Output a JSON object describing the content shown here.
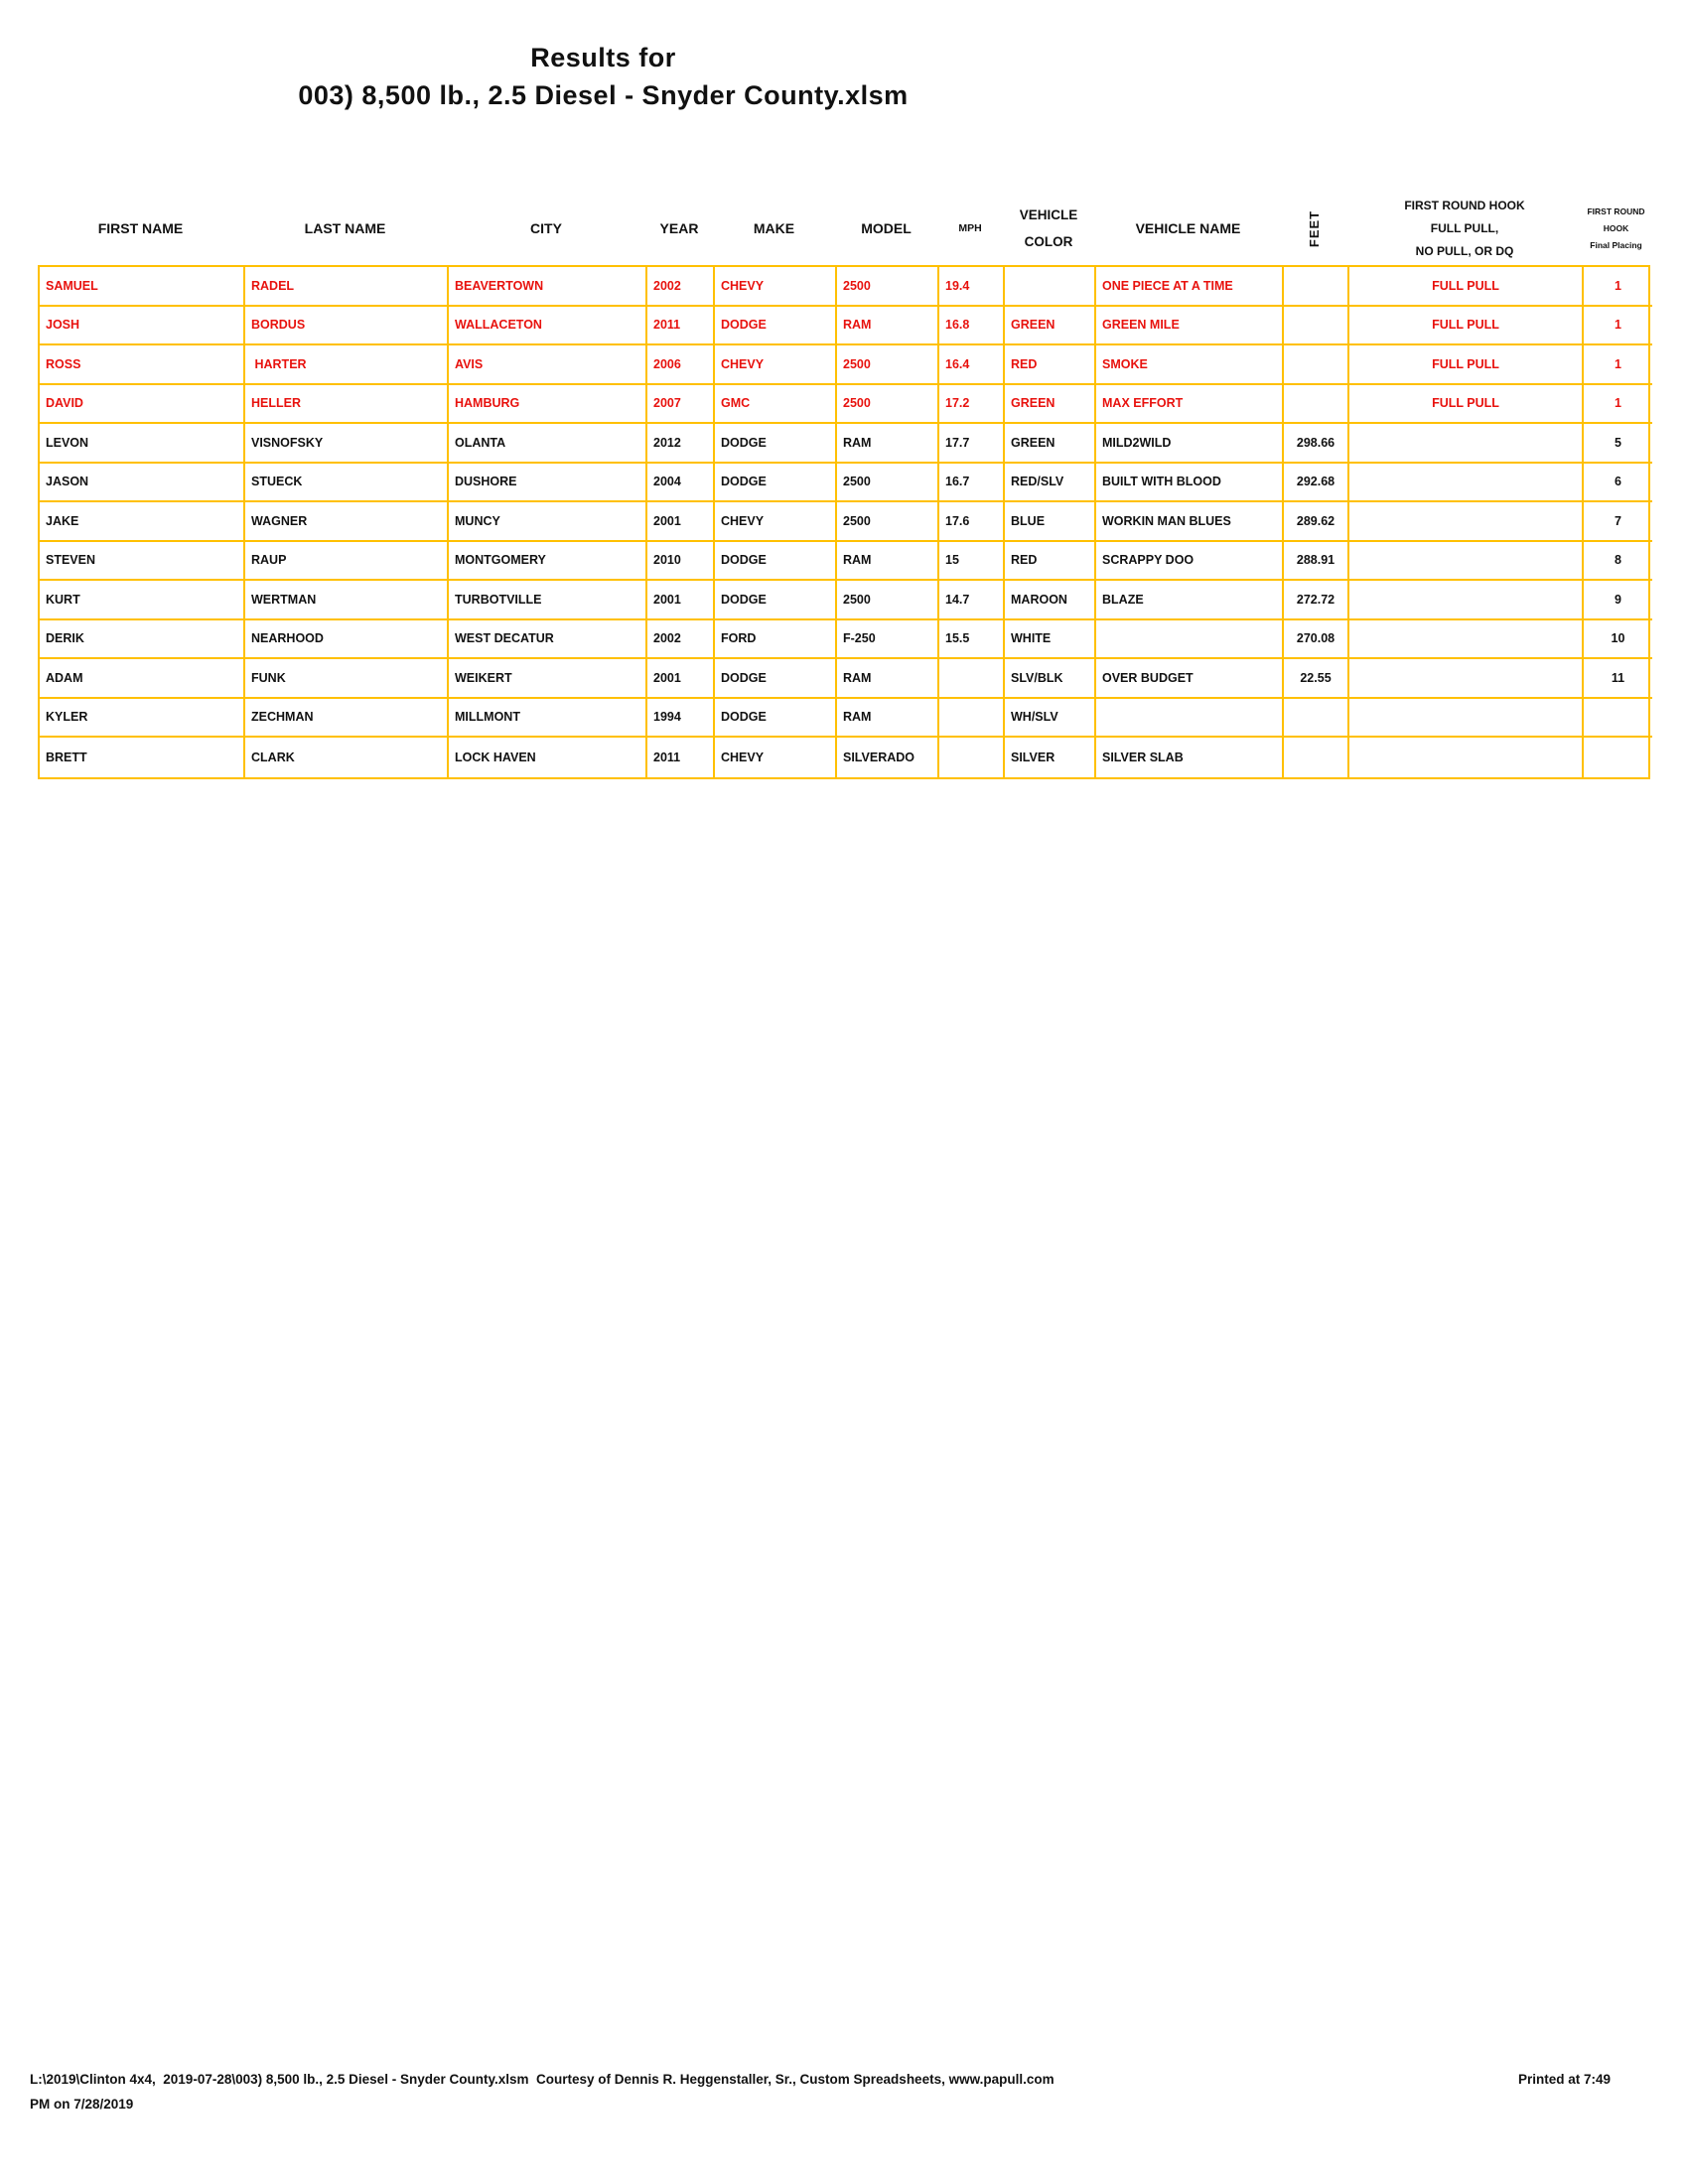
{
  "title": {
    "line1": "Results for",
    "line2": "003) 8,500 lb., 2.5 Diesel - Snyder County.xlsm"
  },
  "colors": {
    "border": "#FFC000",
    "red_text": "#E8120E",
    "black_text": "#111111"
  },
  "table": {
    "columns": [
      "first_name",
      "last_name",
      "city",
      "year",
      "make",
      "model",
      "mph",
      "vehicle_color",
      "vehicle_name",
      "feet",
      "first_round_hook",
      "final_placing"
    ],
    "header": {
      "first_name": "FIRST NAME",
      "last_name": "LAST NAME",
      "city": "CITY",
      "year": "YEAR",
      "make": "MAKE",
      "model": "MODEL",
      "mph": "MPH",
      "vehicle_color_line1": "VEHICLE",
      "vehicle_color_line2": "COLOR",
      "vehicle_name": "VEHICLE NAME",
      "feet": "FEET",
      "hook_line1": "FIRST ROUND HOOK",
      "hook_line2": "FULL PULL,",
      "hook_line3": "NO PULL, OR DQ",
      "placing_line1": "FIRST ROUND",
      "placing_line2": "HOOK",
      "placing_line3": "Final Placing"
    },
    "rows": [
      {
        "red": true,
        "cells": [
          "SAMUEL",
          "RADEL",
          "BEAVERTOWN",
          "2002",
          "CHEVY",
          "2500",
          "19.4",
          "",
          "ONE PIECE AT A TIME",
          "",
          "FULL PULL",
          "1"
        ]
      },
      {
        "red": true,
        "cells": [
          "JOSH",
          "BORDUS",
          "WALLACETON",
          "2011",
          "DODGE",
          "RAM",
          "16.8",
          "GREEN",
          "GREEN MILE",
          "",
          "FULL PULL",
          "1"
        ]
      },
      {
        "red": true,
        "cells": [
          "ROSS",
          " HARTER",
          "AVIS",
          "2006",
          "CHEVY",
          "2500",
          "16.4",
          "RED",
          "SMOKE",
          "",
          "FULL PULL",
          "1"
        ]
      },
      {
        "red": true,
        "cells": [
          "DAVID",
          "HELLER",
          "HAMBURG",
          "2007",
          "GMC",
          "2500",
          "17.2",
          "GREEN",
          "MAX EFFORT",
          "",
          "FULL PULL",
          "1"
        ]
      },
      {
        "red": false,
        "cells": [
          "LEVON",
          "VISNOFSKY",
          "OLANTA",
          "2012",
          "DODGE",
          "RAM",
          "17.7",
          "GREEN",
          "MILD2WILD",
          "298.66",
          "",
          "5"
        ]
      },
      {
        "red": false,
        "cells": [
          "JASON",
          "STUECK",
          "DUSHORE",
          "2004",
          "DODGE",
          "2500",
          "16.7",
          "RED/SLV",
          "BUILT WITH BLOOD",
          "292.68",
          "",
          "6"
        ]
      },
      {
        "red": false,
        "cells": [
          "JAKE",
          "WAGNER",
          "MUNCY",
          "2001",
          "CHEVY",
          "2500",
          "17.6",
          "BLUE",
          "WORKIN MAN BLUES",
          "289.62",
          "",
          "7"
        ]
      },
      {
        "red": false,
        "cells": [
          "STEVEN",
          "RAUP",
          "MONTGOMERY",
          "2010",
          "DODGE",
          "RAM",
          "15",
          "RED",
          "SCRAPPY DOO",
          "288.91",
          "",
          "8"
        ]
      },
      {
        "red": false,
        "cells": [
          "KURT",
          "WERTMAN",
          "TURBOTVILLE",
          "2001",
          "DODGE",
          "2500",
          "14.7",
          "MAROON",
          "BLAZE",
          "272.72",
          "",
          "9"
        ]
      },
      {
        "red": false,
        "cells": [
          "DERIK",
          "NEARHOOD",
          "WEST DECATUR",
          "2002",
          "FORD",
          "F-250",
          "15.5",
          "WHITE",
          "",
          "270.08",
          "",
          "10"
        ]
      },
      {
        "red": false,
        "cells": [
          "ADAM",
          "FUNK",
          "WEIKERT",
          "2001",
          "DODGE",
          "RAM",
          "",
          "SLV/BLK",
          "OVER BUDGET",
          "22.55",
          "",
          "11"
        ]
      },
      {
        "red": false,
        "cells": [
          "KYLER",
          "ZECHMAN",
          "MILLMONT",
          "1994",
          "DODGE",
          "RAM",
          "",
          "WH/SLV",
          "",
          "",
          "",
          ""
        ]
      },
      {
        "red": false,
        "cells": [
          "BRETT",
          "CLARK",
          "LOCK HAVEN",
          "2011",
          "CHEVY",
          "SILVERADO",
          "",
          "SILVER",
          "SILVER SLAB",
          "",
          "",
          ""
        ]
      }
    ]
  },
  "footer": {
    "path_text": "L:\\2019\\Clinton 4x4,  2019-07-28\\003) 8,500 lb., 2.5 Diesel - Snyder County.xlsm  Courtesy of Dennis R. Heggenstaller, Sr., Custom Spreadsheets, www.papull.com",
    "printed_at": "Printed at 7:49",
    "line2": "PM on 7/28/2019"
  }
}
